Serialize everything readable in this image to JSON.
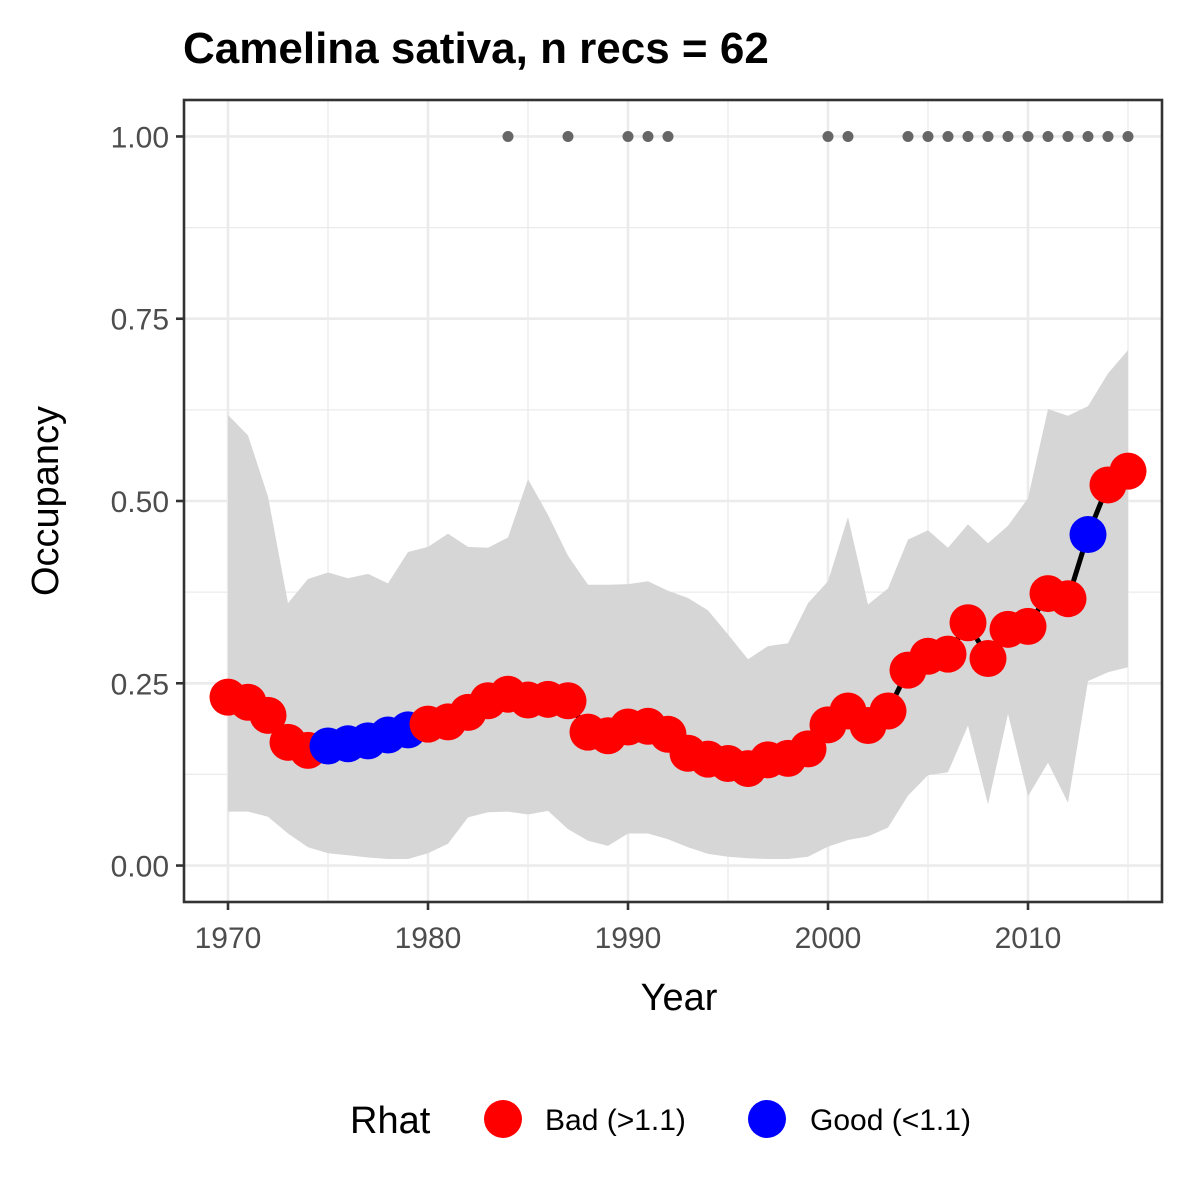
{
  "chart_data": {
    "type": "line",
    "title": "Camelina sativa, n recs = 62",
    "xlabel": "Year",
    "ylabel": "Occupancy",
    "xlim": [
      1967.8,
      2016.7
    ],
    "ylim": [
      -0.05,
      1.05
    ],
    "x_ticks": [
      1970,
      1980,
      1990,
      2000,
      2010
    ],
    "x_tick_labels": [
      "1970",
      "1980",
      "1990",
      "2000",
      "2010"
    ],
    "y_ticks": [
      0,
      0.25,
      0.5,
      0.75,
      1.0
    ],
    "y_tick_labels": [
      "0.00",
      "0.25",
      "0.50",
      "0.75",
      "1.00"
    ],
    "grid": true,
    "legend": {
      "title": "Rhat",
      "position": "bottom",
      "entries": [
        {
          "label": "Bad (>1.1)",
          "color": "#ff0000"
        },
        {
          "label": "Good (<1.1)",
          "color": "#0000ff"
        }
      ]
    },
    "colors": {
      "bad": "#ff0000",
      "good": "#0000ff",
      "line": "#000000",
      "ribbon": "#d6d6d6",
      "records": "#666666"
    },
    "series": [
      {
        "name": "Occupancy",
        "x": [
          1970,
          1971,
          1972,
          1973,
          1974,
          1975,
          1976,
          1977,
          1978,
          1979,
          1980,
          1981,
          1982,
          1983,
          1984,
          1985,
          1986,
          1987,
          1988,
          1989,
          1990,
          1991,
          1992,
          1993,
          1994,
          1995,
          1996,
          1997,
          1998,
          1999,
          2000,
          2001,
          2002,
          2003,
          2004,
          2005,
          2006,
          2007,
          2008,
          2009,
          2010,
          2011,
          2012,
          2013,
          2014,
          2015
        ],
        "y": [
          0.231,
          0.224,
          0.206,
          0.169,
          0.158,
          0.164,
          0.167,
          0.171,
          0.179,
          0.186,
          0.194,
          0.197,
          0.21,
          0.226,
          0.235,
          0.227,
          0.228,
          0.226,
          0.183,
          0.178,
          0.19,
          0.191,
          0.18,
          0.154,
          0.146,
          0.14,
          0.133,
          0.145,
          0.147,
          0.16,
          0.193,
          0.212,
          0.192,
          0.212,
          0.268,
          0.287,
          0.29,
          0.333,
          0.284,
          0.324,
          0.328,
          0.373,
          0.366,
          0.454,
          0.522,
          0.541
        ],
        "rhat": [
          "Bad",
          "Bad",
          "Bad",
          "Bad",
          "Bad",
          "Good",
          "Good",
          "Good",
          "Good",
          "Good",
          "Bad",
          "Bad",
          "Bad",
          "Bad",
          "Bad",
          "Bad",
          "Bad",
          "Bad",
          "Bad",
          "Bad",
          "Bad",
          "Bad",
          "Bad",
          "Bad",
          "Bad",
          "Bad",
          "Bad",
          "Bad",
          "Bad",
          "Bad",
          "Bad",
          "Bad",
          "Bad",
          "Bad",
          "Bad",
          "Bad",
          "Bad",
          "Bad",
          "Bad",
          "Bad",
          "Bad",
          "Bad",
          "Bad",
          "Good",
          "Bad",
          "Bad"
        ]
      }
    ],
    "ribbon": {
      "x": [
        1970,
        1971,
        1972,
        1973,
        1974,
        1975,
        1976,
        1977,
        1978,
        1979,
        1980,
        1981,
        1982,
        1983,
        1984,
        1985,
        1986,
        1987,
        1988,
        1989,
        1990,
        1991,
        1992,
        1993,
        1994,
        1995,
        1996,
        1997,
        1998,
        1999,
        2000,
        2001,
        2002,
        2003,
        2004,
        2005,
        2006,
        2007,
        2008,
        2009,
        2010,
        2011,
        2012,
        2013,
        2014,
        2015
      ],
      "upper": [
        0.618,
        0.59,
        0.506,
        0.36,
        0.393,
        0.402,
        0.394,
        0.4,
        0.387,
        0.43,
        0.437,
        0.455,
        0.437,
        0.436,
        0.45,
        0.53,
        0.481,
        0.425,
        0.385,
        0.385,
        0.386,
        0.39,
        0.377,
        0.367,
        0.35,
        0.317,
        0.283,
        0.301,
        0.305,
        0.36,
        0.39,
        0.478,
        0.358,
        0.38,
        0.447,
        0.46,
        0.436,
        0.468,
        0.442,
        0.466,
        0.504,
        0.626,
        0.617,
        0.63,
        0.675,
        0.707
      ],
      "lower": [
        0.074,
        0.074,
        0.067,
        0.044,
        0.025,
        0.017,
        0.014,
        0.011,
        0.009,
        0.009,
        0.017,
        0.03,
        0.066,
        0.073,
        0.074,
        0.07,
        0.075,
        0.05,
        0.034,
        0.027,
        0.044,
        0.044,
        0.036,
        0.025,
        0.016,
        0.012,
        0.01,
        0.009,
        0.009,
        0.012,
        0.026,
        0.035,
        0.04,
        0.052,
        0.096,
        0.124,
        0.128,
        0.192,
        0.084,
        0.208,
        0.095,
        0.141,
        0.086,
        0.253,
        0.265,
        0.272
      ]
    },
    "record_years": [
      1984,
      1987,
      1990,
      1991,
      1992,
      2000,
      2001,
      2004,
      2005,
      2006,
      2007,
      2008,
      2009,
      2010,
      2011,
      2012,
      2013,
      2014,
      2015
    ],
    "record_y": 1.0
  }
}
